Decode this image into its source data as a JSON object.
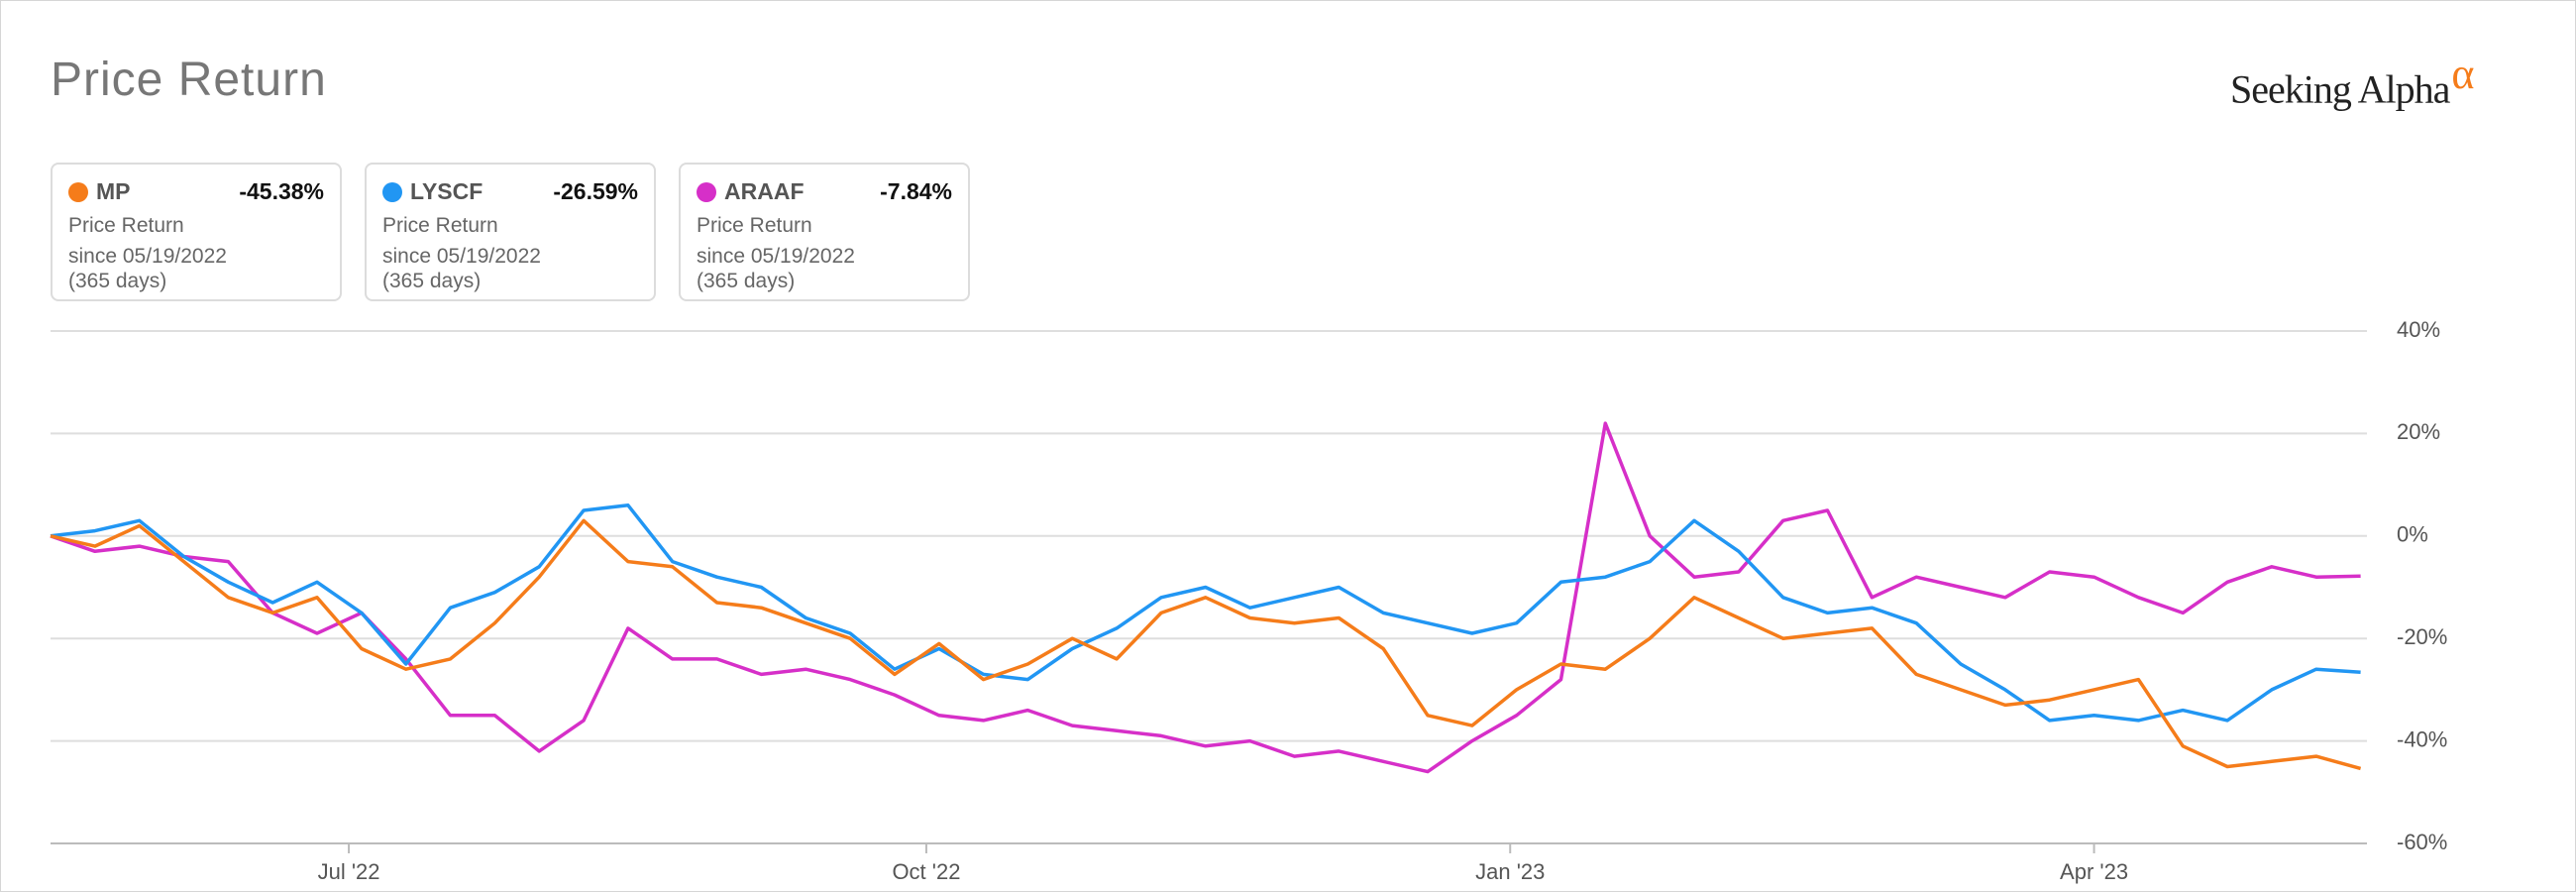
{
  "chart_data": {
    "type": "line",
    "title": "Price Return",
    "brand": "Seeking Alpha",
    "brand_mark": "α",
    "card_subtitle": "Price Return",
    "card_since": "since 05/19/2022",
    "card_period": "(365 days)",
    "x": [
      0,
      7,
      14,
      21,
      28,
      35,
      42,
      49,
      56,
      63,
      70,
      77,
      84,
      91,
      98,
      105,
      112,
      119,
      126,
      133,
      140,
      147,
      154,
      161,
      168,
      175,
      182,
      189,
      196,
      203,
      210,
      217,
      224,
      231,
      238,
      245,
      252,
      259,
      266,
      273,
      280,
      287,
      294,
      301,
      308,
      315,
      322,
      329,
      336,
      343,
      350,
      357,
      364
    ],
    "xlim": [
      0,
      365
    ],
    "xticks": [
      {
        "value": 47,
        "label": "Jul '22"
      },
      {
        "value": 138,
        "label": "Oct '22"
      },
      {
        "value": 230,
        "label": "Jan '23"
      },
      {
        "value": 322,
        "label": "Apr '23"
      }
    ],
    "ylim": [
      -60,
      40
    ],
    "yticks": [
      {
        "value": -60,
        "label": "-60%"
      },
      {
        "value": -40,
        "label": "-40%"
      },
      {
        "value": -20,
        "label": "-20%"
      },
      {
        "value": 0,
        "label": "0%"
      },
      {
        "value": 20,
        "label": "20%"
      },
      {
        "value": 40,
        "label": "40%"
      }
    ],
    "grid": true,
    "series": [
      {
        "name": "MP",
        "color": "#f57c1a",
        "change_label": "-45.38%",
        "values": [
          0,
          -2,
          2,
          -5,
          -12,
          -15,
          -12,
          -22,
          -26,
          -24,
          -17,
          -8,
          3,
          -5,
          -6,
          -13,
          -14,
          -17,
          -20,
          -27,
          -21,
          -28,
          -25,
          -20,
          -24,
          -15,
          -12,
          -16,
          -17,
          -16,
          -22,
          -35,
          -37,
          -30,
          -25,
          -26,
          -20,
          -12,
          -16,
          -20,
          -19,
          -18,
          -27,
          -30,
          -33,
          -32,
          -30,
          -28,
          -41,
          -45,
          -44,
          -43,
          -45.38
        ]
      },
      {
        "name": "LYSCF",
        "color": "#2196f3",
        "change_label": "-26.59%",
        "values": [
          0,
          1,
          3,
          -4,
          -9,
          -13,
          -9,
          -15,
          -25,
          -14,
          -11,
          -6,
          5,
          6,
          -5,
          -8,
          -10,
          -16,
          -19,
          -26,
          -22,
          -27,
          -28,
          -22,
          -18,
          -12,
          -10,
          -14,
          -12,
          -10,
          -15,
          -17,
          -19,
          -17,
          -9,
          -8,
          -5,
          3,
          -3,
          -12,
          -15,
          -14,
          -17,
          -25,
          -30,
          -36,
          -35,
          -36,
          -34,
          -36,
          -30,
          -26,
          -26.59
        ]
      },
      {
        "name": "ARAAF",
        "color": "#d62fc8",
        "change_label": "-7.84%",
        "values": [
          0,
          -3,
          -2,
          -4,
          -5,
          -15,
          -19,
          -15,
          -24,
          -35,
          -35,
          -42,
          -36,
          -18,
          -24,
          -24,
          -27,
          -26,
          -28,
          -31,
          -35,
          -36,
          -34,
          -37,
          -38,
          -39,
          -41,
          -40,
          -43,
          -42,
          -44,
          -46,
          -40,
          -35,
          -28,
          22,
          0,
          -8,
          -7,
          3,
          5,
          -12,
          -8,
          -10,
          -12,
          -7,
          -8,
          -12,
          -15,
          -9,
          -6,
          -8,
          -7.84
        ]
      }
    ]
  }
}
